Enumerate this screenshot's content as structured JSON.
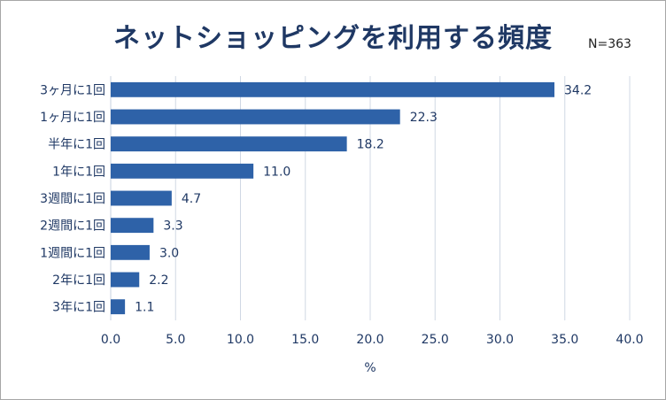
{
  "chart_data": {
    "type": "bar",
    "orientation": "horizontal",
    "title": "ネットショッピングを利用する頻度",
    "note": "N=363",
    "xlabel": "%",
    "categories": [
      "3ヶ月に1回",
      "1ヶ月に1回",
      "半年に1回",
      "1年に1回",
      "3週間に1回",
      "2週間に1回",
      "1週間に1回",
      "2年に1回",
      "3年に1回"
    ],
    "values": [
      34.2,
      22.3,
      18.2,
      11.0,
      4.7,
      3.3,
      3.0,
      2.2,
      1.1
    ],
    "value_labels": [
      "34.2",
      "22.3",
      "18.2",
      "11.0",
      "4.7",
      "3.3",
      "3.0",
      "2.2",
      "1.1"
    ],
    "xlim": [
      0,
      40
    ],
    "x_ticks": [
      "0.0",
      "5.0",
      "10.0",
      "15.0",
      "20.0",
      "25.0",
      "30.0",
      "35.0",
      "40.0"
    ],
    "grid": "vertical",
    "legend": "none",
    "colors": {
      "bar": "#2e62a8",
      "grid": "#d0d8e4",
      "text": "#1f3864"
    }
  }
}
